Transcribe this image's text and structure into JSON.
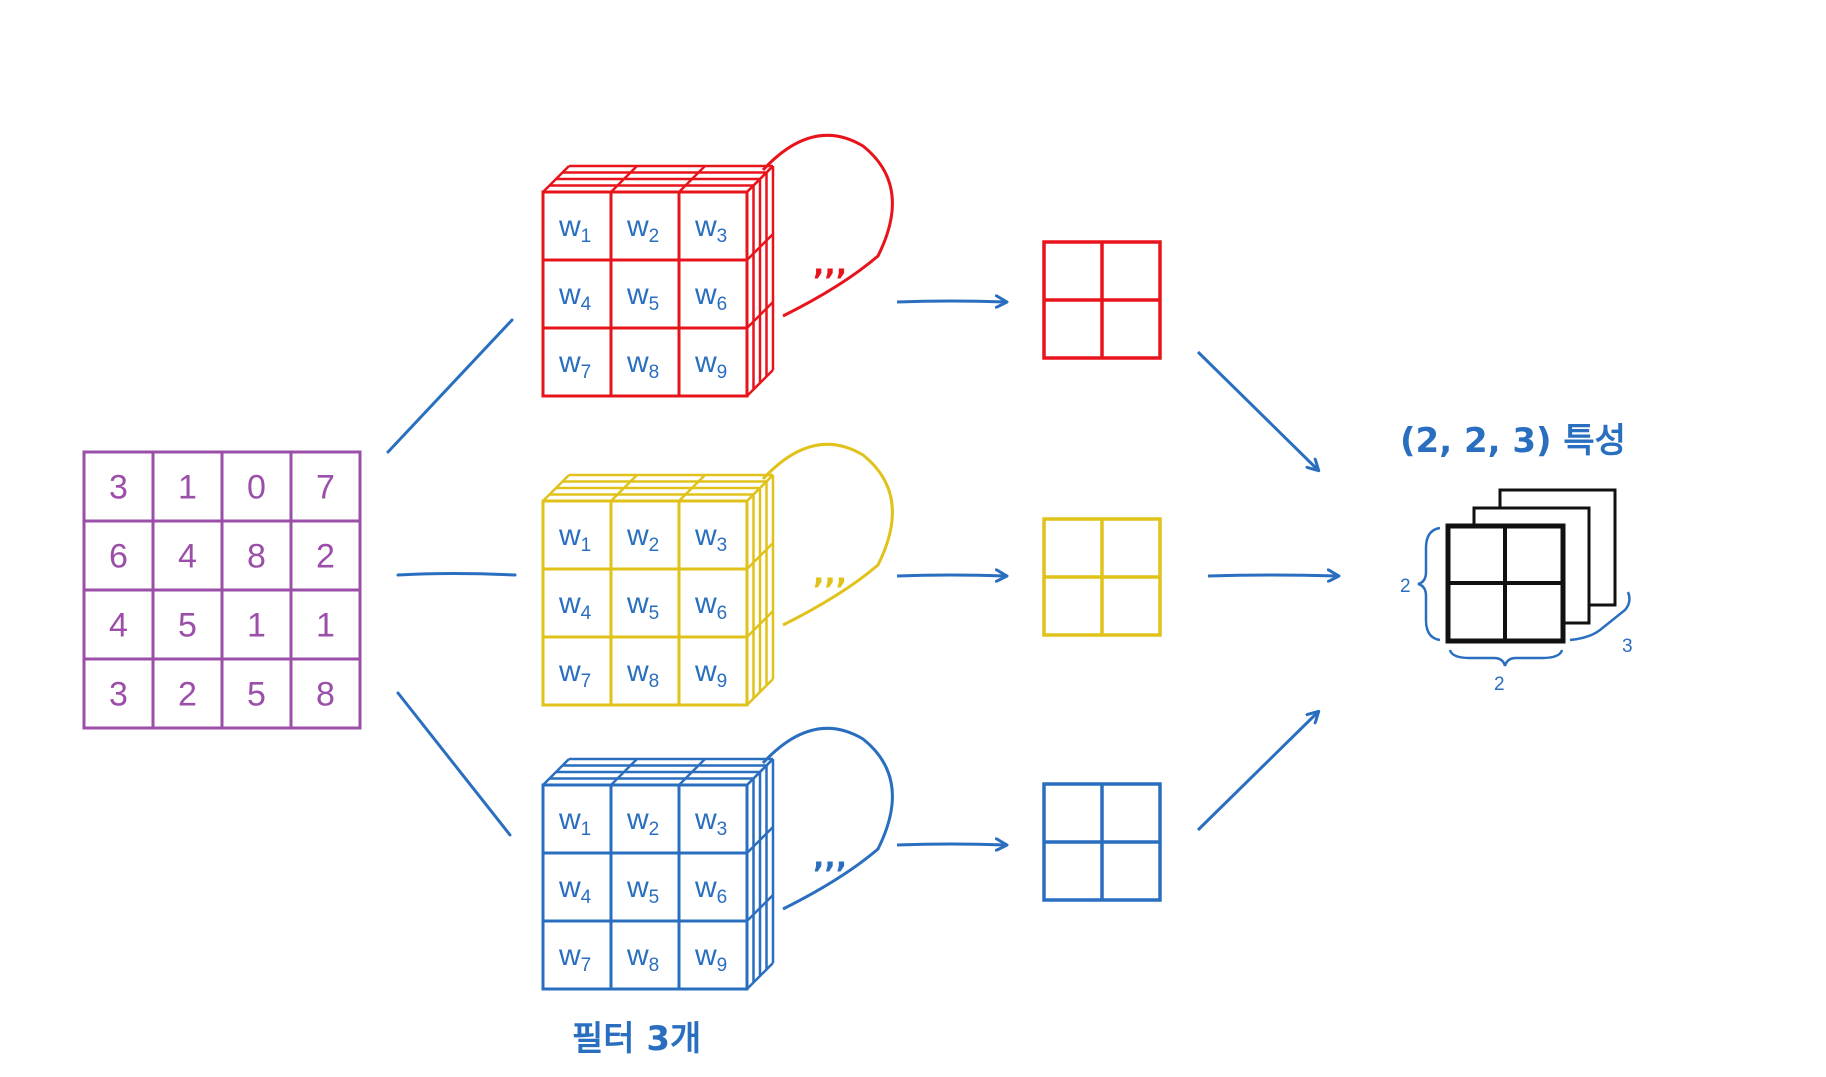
{
  "colors": {
    "input": "#9b4fa8",
    "filter_red": "#e8141c",
    "filter_yellow": "#e0c21a",
    "filter_blue": "#2a6fbf",
    "arrow": "#2a6fbf",
    "feature": "#111111",
    "weights_text": "#2a6fbf"
  },
  "input_matrix": [
    [
      "3",
      "1",
      "0",
      "7"
    ],
    [
      "6",
      "4",
      "8",
      "2"
    ],
    [
      "4",
      "5",
      "1",
      "1"
    ],
    [
      "3",
      "2",
      "5",
      "8"
    ]
  ],
  "filters": [
    {
      "color_key": "filter_red",
      "weights": [
        "w1",
        "w2",
        "w3",
        "w4",
        "w5",
        "w6",
        "w7",
        "w8",
        "w9"
      ],
      "ellipsis": ",,,"
    },
    {
      "color_key": "filter_yellow",
      "weights": [
        "w1",
        "w2",
        "w3",
        "w4",
        "w5",
        "w6",
        "w7",
        "w8",
        "w9"
      ],
      "ellipsis": ",,,"
    },
    {
      "color_key": "filter_blue",
      "weights": [
        "w1",
        "w2",
        "w3",
        "w4",
        "w5",
        "w6",
        "w7",
        "w8",
        "w9"
      ],
      "ellipsis": ",,,"
    }
  ],
  "filters_caption": "필터 3개",
  "output_caption": "(2, 2, 3) 특성",
  "feature_dims": {
    "height": "2",
    "width": "2",
    "depth": "3"
  }
}
